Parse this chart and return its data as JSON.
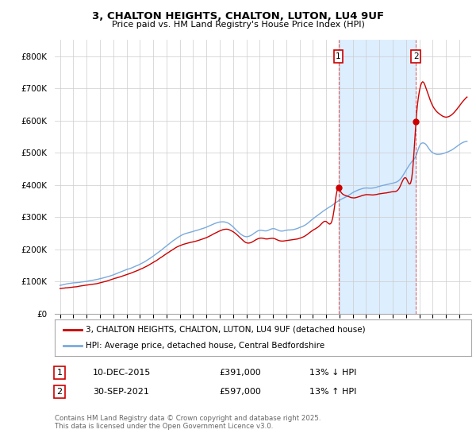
{
  "title": "3, CHALTON HEIGHTS, CHALTON, LUTON, LU4 9UF",
  "subtitle": "Price paid vs. HM Land Registry's House Price Index (HPI)",
  "legend_line1": "3, CHALTON HEIGHTS, CHALTON, LUTON, LU4 9UF (detached house)",
  "legend_line2": "HPI: Average price, detached house, Central Bedfordshire",
  "footnote": "Contains HM Land Registry data © Crown copyright and database right 2025.\nThis data is licensed under the Open Government Licence v3.0.",
  "annotation1_label": "1",
  "annotation1_date": "10-DEC-2015",
  "annotation1_price": "£391,000",
  "annotation1_hpi": "13% ↓ HPI",
  "annotation2_label": "2",
  "annotation2_date": "30-SEP-2021",
  "annotation2_price": "£597,000",
  "annotation2_hpi": "13% ↑ HPI",
  "line_color_red": "#cc0000",
  "line_color_blue": "#7aaadd",
  "shade_color": "#ddeeff",
  "vline_color": "#dd4444",
  "annotation_box_color": "#cc0000",
  "ylim": [
    0,
    850000
  ],
  "yticks": [
    0,
    100000,
    200000,
    300000,
    400000,
    500000,
    600000,
    700000,
    800000
  ],
  "sale1_year": 2015.917,
  "sale1_price": 391000,
  "sale2_year": 2021.75,
  "sale2_price": 597000,
  "bg_color": "#ffffff",
  "grid_color": "#cccccc"
}
